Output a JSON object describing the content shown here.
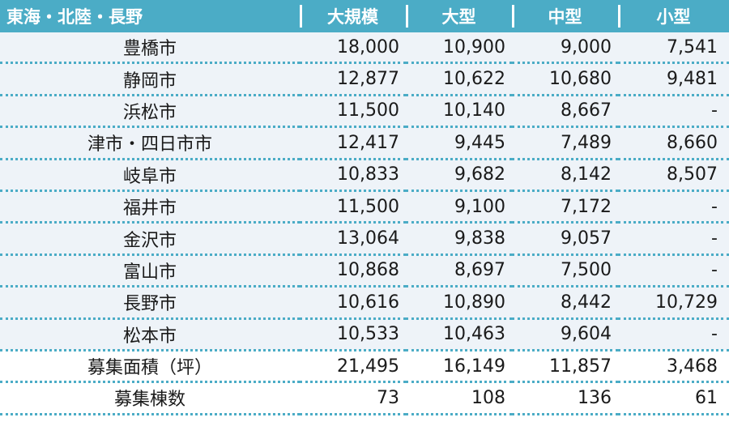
{
  "header": {
    "region": "東海・北陸・長野",
    "columns": [
      "大規模",
      "大型",
      "中型",
      "小型"
    ]
  },
  "rows": [
    {
      "name": "豊橋市",
      "values": [
        "18,000",
        "10,900",
        "9,000",
        "7,541"
      ]
    },
    {
      "name": "静岡市",
      "values": [
        "12,877",
        "10,622",
        "10,680",
        "9,481"
      ]
    },
    {
      "name": "浜松市",
      "values": [
        "11,500",
        "10,140",
        "8,667",
        "-"
      ]
    },
    {
      "name": "津市・四日市市",
      "values": [
        "12,417",
        "9,445",
        "7,489",
        "8,660"
      ]
    },
    {
      "name": "岐阜市",
      "values": [
        "10,833",
        "9,682",
        "8,142",
        "8,507"
      ]
    },
    {
      "name": "福井市",
      "values": [
        "11,500",
        "9,100",
        "7,172",
        "-"
      ]
    },
    {
      "name": "金沢市",
      "values": [
        "13,064",
        "9,838",
        "9,057",
        "-"
      ]
    },
    {
      "name": "富山市",
      "values": [
        "10,868",
        "8,697",
        "7,500",
        "-"
      ]
    },
    {
      "name": "長野市",
      "values": [
        "10,616",
        "10,890",
        "8,442",
        "10,729"
      ]
    },
    {
      "name": "松本市",
      "values": [
        "10,533",
        "10,463",
        "9,604",
        "-"
      ]
    },
    {
      "name": "募集面積（坪）",
      "values": [
        "21,495",
        "16,149",
        "11,857",
        "3,468"
      ]
    },
    {
      "name": "募集棟数",
      "values": [
        "73",
        "108",
        "136",
        "61"
      ]
    }
  ],
  "colors": {
    "header_bg": "#4bacc6",
    "row_shade": "#eef3f8",
    "divider": "#4bacc6"
  }
}
